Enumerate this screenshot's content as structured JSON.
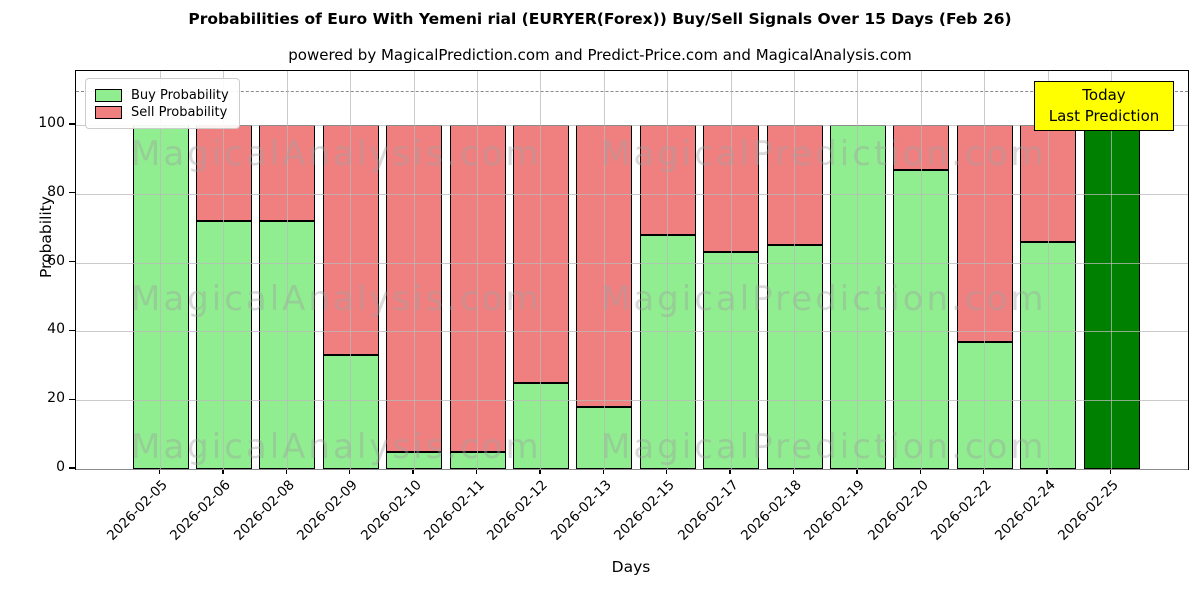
{
  "title": "Probabilities of Euro With Yemeni rial (EURYER(Forex)) Buy/Sell Signals Over 15 Days (Feb 26)",
  "subtitle": "powered by MagicalPrediction.com and Predict-Price.com and MagicalAnalysis.com",
  "legend": {
    "items": [
      {
        "label": "Buy Probability",
        "color": "#90EE90"
      },
      {
        "label": "Sell Probability",
        "color": "#F08080"
      }
    ]
  },
  "annotation_box": {
    "line1": "Today",
    "line2": "Last Prediction",
    "bg": "#FFFF00"
  },
  "watermarks": {
    "left": "MagicalAnalysis.com",
    "right": "MagicalPrediction.com"
  },
  "chart_data": {
    "type": "bar",
    "stacked": true,
    "categories": [
      "2026-02-05",
      "2026-02-06",
      "2026-02-08",
      "2026-02-09",
      "2026-02-10",
      "2026-02-11",
      "2026-02-12",
      "2026-02-13",
      "2026-02-15",
      "2026-02-17",
      "2026-02-18",
      "2026-02-19",
      "2026-02-20",
      "2026-02-22",
      "2026-02-24",
      "2026-02-25"
    ],
    "series": [
      {
        "name": "Buy Probability",
        "color": "#90EE90",
        "values": [
          100,
          72,
          72,
          33,
          5,
          5,
          25,
          18,
          68,
          63,
          65,
          100,
          87,
          37,
          66,
          100
        ]
      },
      {
        "name": "Sell Probability",
        "color": "#F08080",
        "values": [
          0,
          28,
          28,
          67,
          95,
          95,
          75,
          82,
          32,
          37,
          35,
          0,
          13,
          63,
          34,
          0
        ]
      }
    ],
    "today_bar": {
      "index": 15,
      "color": "#008000",
      "value": 100
    },
    "title": "Probabilities of Euro With Yemeni rial (EURYER(Forex)) Buy/Sell Signals Over 15 Days (Feb 26)",
    "xlabel": "Days",
    "ylabel": "Probability",
    "yticks": [
      0,
      20,
      40,
      60,
      80,
      100
    ],
    "ylim": [
      0,
      115.7
    ],
    "dashed_line_y": 110,
    "grid": true,
    "legend_position": "upper left"
  }
}
